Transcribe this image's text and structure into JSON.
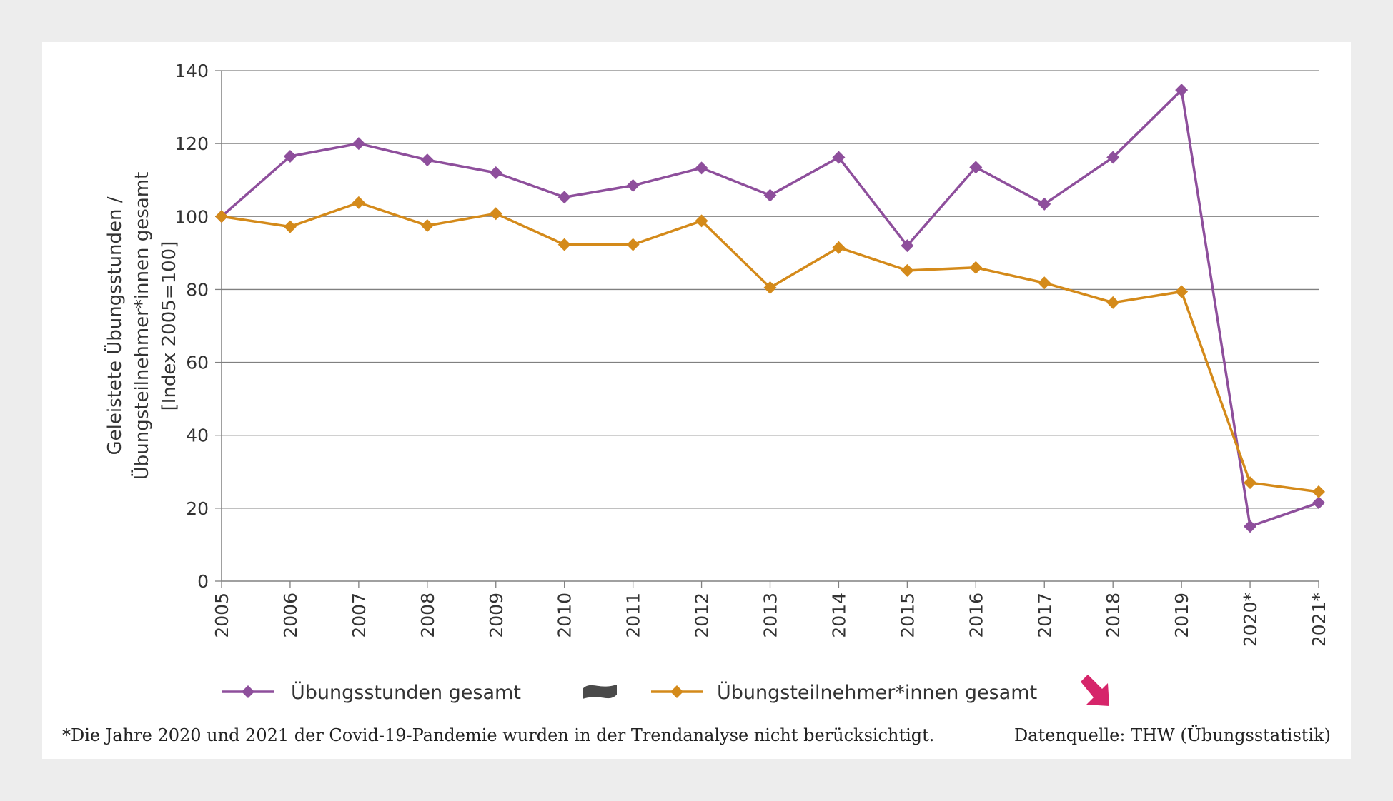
{
  "chart_data": {
    "type": "line",
    "categories": [
      "2005",
      "2006",
      "2007",
      "2008",
      "2009",
      "2010",
      "2011",
      "2012",
      "2013",
      "2014",
      "2015",
      "2016",
      "2017",
      "2018",
      "2019",
      "2020*",
      "2021*"
    ],
    "series": [
      {
        "name": "Übungsstunden gesamt",
        "color": "#8e4f9c",
        "values": [
          100,
          116.5,
          120,
          115.5,
          112,
          105.3,
          108.5,
          113.3,
          105.8,
          116.2,
          92,
          113.5,
          103.4,
          116.2,
          134.7,
          15,
          21.5
        ],
        "trend_icon": "sideways-trend-icon",
        "trend_color": "#4a4a4a"
      },
      {
        "name": "Übungsteilnehmer*innen gesamt",
        "color": "#d48a1a",
        "values": [
          100,
          97.2,
          103.8,
          97.5,
          100.8,
          92.3,
          92.3,
          98.8,
          80.5,
          91.5,
          85.2,
          86,
          81.8,
          76.4,
          79.4,
          27,
          24.5
        ],
        "trend_icon": "downward-trend-arrow-icon",
        "trend_color": "#d6256a"
      }
    ],
    "y_ticks": [
      "0",
      "20",
      "40",
      "60",
      "80",
      "100",
      "120",
      "140"
    ],
    "ylim": [
      0,
      140
    ],
    "ylabel_lines": [
      "Geleistete Übungsstunden /",
      "Übungsteilnehmer*innen gesamt",
      "[Index 2005=100]"
    ],
    "xlabel": "",
    "grid": true,
    "legend_position": "bottom"
  },
  "footnote": "*Die Jahre 2020 und 2021 der Covid-19-Pandemie wurden in der Trendanalyse nicht berücksichtigt.",
  "source": "Datenquelle: THW (Übungsstatistik)"
}
